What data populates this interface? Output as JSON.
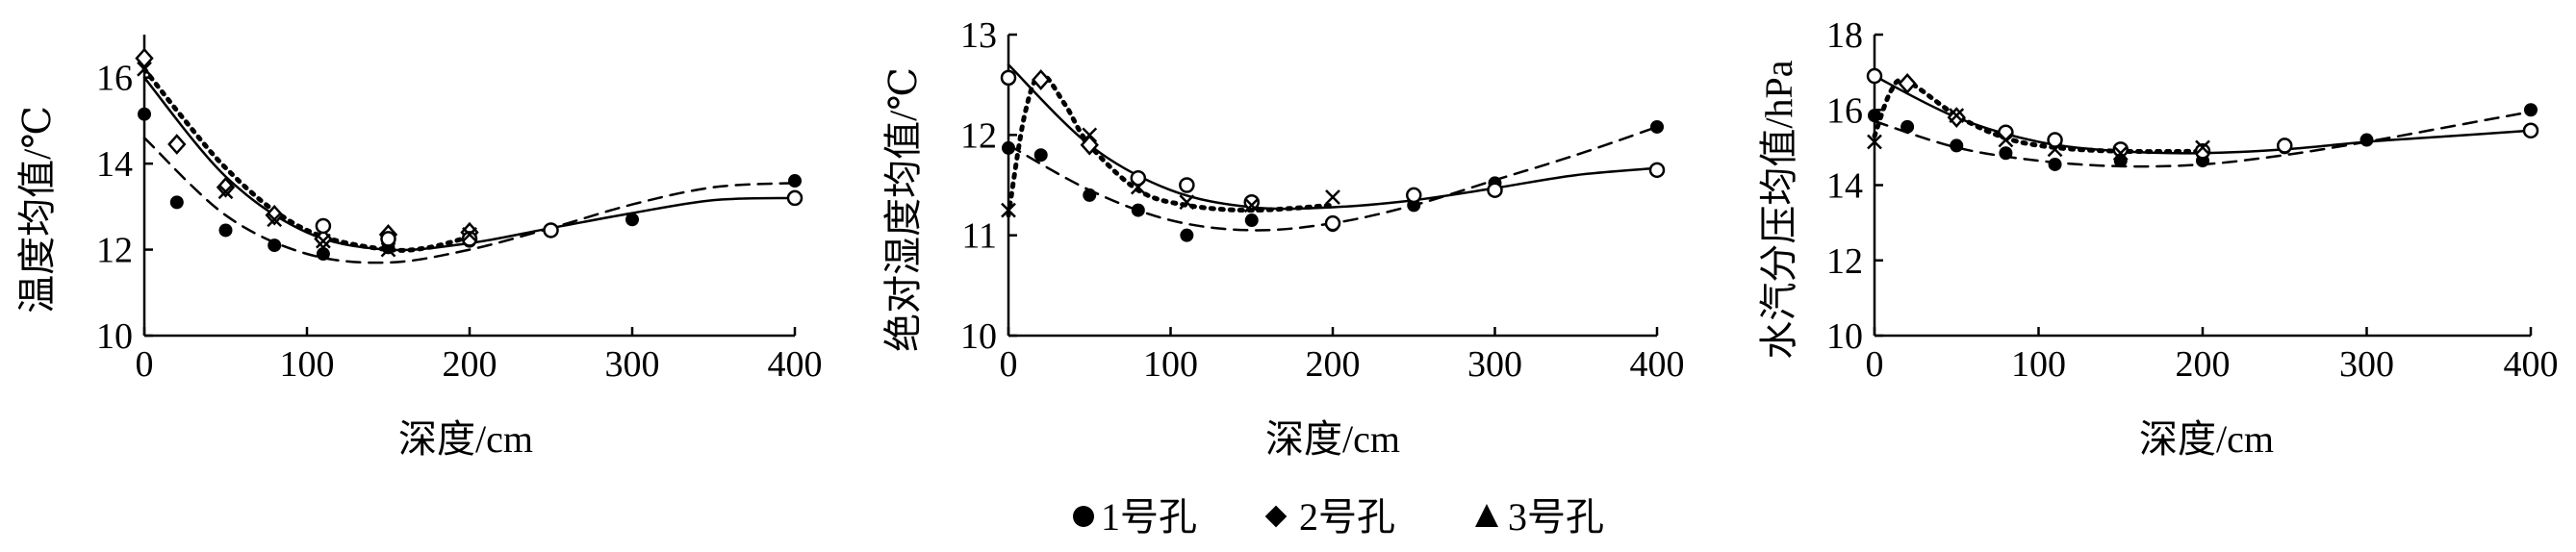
{
  "colors": {
    "axis": "#000000",
    "marker": "#000000",
    "background": "#ffffff"
  },
  "legend": {
    "placement": "bottom-center",
    "items": [
      {
        "label": "1号孔",
        "marker": "filled-circle",
        "fit_style": "dashed"
      },
      {
        "label": "2号孔",
        "marker": "filled-diamond",
        "fit_style": "dotted"
      },
      {
        "label": "3号孔",
        "marker": "filled-triangle",
        "fit_style": "solid"
      }
    ]
  },
  "chart_data": [
    {
      "type": "scatter",
      "title": "",
      "xlabel": "深度/cm",
      "ylabel": "温度均值/℃",
      "xlim": [
        0,
        400
      ],
      "ylim": [
        10,
        17
      ],
      "xticks": [
        "0",
        "100",
        "200",
        "300",
        "400"
      ],
      "yticks": [
        "10",
        "12",
        "14",
        "16"
      ],
      "series": [
        {
          "marker": "filled-circle",
          "x": [
            0,
            20,
            50,
            80,
            110,
            150,
            200,
            250,
            300,
            400
          ],
          "y": [
            15.15,
            13.1,
            12.45,
            12.1,
            11.9,
            12.05,
            12.2,
            12.45,
            12.7,
            13.6
          ],
          "fit": [
            [
              0,
              14.6
            ],
            [
              50,
              12.8
            ],
            [
              100,
              11.9
            ],
            [
              150,
              11.7
            ],
            [
              200,
              12.0
            ],
            [
              250,
              12.5
            ],
            [
              300,
              13.05
            ],
            [
              350,
              13.45
            ],
            [
              400,
              13.55
            ]
          ]
        },
        {
          "marker": "filled-diamond",
          "x": [
            0,
            20,
            50,
            80,
            110,
            150,
            200
          ],
          "y": [
            16.45,
            14.45,
            13.45,
            12.8,
            12.25,
            12.35,
            12.4
          ],
          "fit": [
            [
              0,
              16.2
            ],
            [
              25,
              15.0
            ],
            [
              50,
              13.9
            ],
            [
              80,
              12.9
            ],
            [
              110,
              12.3
            ],
            [
              150,
              12.0
            ],
            [
              175,
              12.05
            ],
            [
              200,
              12.3
            ]
          ]
        },
        {
          "marker": "open-circle",
          "x": [
            110,
            150,
            200,
            250,
            400
          ],
          "y": [
            12.55,
            12.25,
            12.25,
            12.45,
            13.2
          ],
          "fit": [
            [
              0,
              16.0
            ],
            [
              50,
              13.7
            ],
            [
              100,
              12.4
            ],
            [
              150,
              12.0
            ],
            [
              200,
              12.15
            ],
            [
              250,
              12.5
            ],
            [
              300,
              12.85
            ],
            [
              350,
              13.15
            ],
            [
              400,
              13.2
            ]
          ]
        },
        {
          "marker": "cross",
          "x": [
            0,
            50,
            80,
            110,
            150,
            200
          ],
          "y": [
            16.2,
            13.35,
            12.7,
            12.2,
            12.0,
            12.35
          ],
          "fit": []
        }
      ]
    },
    {
      "type": "scatter",
      "title": "",
      "xlabel": "深度/cm",
      "ylabel": "绝对湿度均值/℃",
      "xlim": [
        0,
        400
      ],
      "ylim": [
        10,
        13
      ],
      "xticks": [
        "0",
        "100",
        "200",
        "300",
        "400"
      ],
      "yticks": [
        "10",
        "11",
        "12",
        "13"
      ],
      "series": [
        {
          "marker": "filled-circle",
          "x": [
            0,
            20,
            50,
            80,
            110,
            150,
            200,
            250,
            300,
            400
          ],
          "y": [
            11.87,
            11.8,
            11.4,
            11.25,
            11.0,
            11.15,
            11.1,
            11.3,
            11.52,
            12.08
          ],
          "fit": [
            [
              0,
              11.9
            ],
            [
              50,
              11.45
            ],
            [
              100,
              11.15
            ],
            [
              150,
              11.05
            ],
            [
              200,
              11.12
            ],
            [
              250,
              11.3
            ],
            [
              300,
              11.55
            ],
            [
              350,
              11.8
            ],
            [
              400,
              12.08
            ]
          ]
        },
        {
          "marker": "filled-diamond",
          "x": [
            20,
            50
          ],
          "y": [
            12.55,
            11.9
          ],
          "fit": [
            [
              0,
              11.2
            ],
            [
              10,
              12.2
            ],
            [
              20,
              12.6
            ],
            [
              35,
              12.3
            ],
            [
              50,
              11.9
            ],
            [
              80,
              11.45
            ],
            [
              110,
              11.3
            ],
            [
              150,
              11.25
            ],
            [
              200,
              11.3
            ]
          ]
        },
        {
          "marker": "open-circle",
          "x": [
            0,
            80,
            110,
            150,
            200,
            250,
            300,
            400
          ],
          "y": [
            12.57,
            11.57,
            11.5,
            11.33,
            11.12,
            11.4,
            11.45,
            11.65
          ],
          "fit": [
            [
              0,
              12.7
            ],
            [
              50,
              11.9
            ],
            [
              100,
              11.45
            ],
            [
              150,
              11.28
            ],
            [
              200,
              11.28
            ],
            [
              250,
              11.35
            ],
            [
              300,
              11.47
            ],
            [
              350,
              11.6
            ],
            [
              400,
              11.67
            ]
          ]
        },
        {
          "marker": "cross",
          "x": [
            0,
            50,
            80,
            110,
            150,
            200
          ],
          "y": [
            11.25,
            12.0,
            11.48,
            11.33,
            11.3,
            11.38
          ],
          "fit": []
        }
      ]
    },
    {
      "type": "scatter",
      "title": "",
      "xlabel": "深度/cm",
      "ylabel": "水汽分压均值/hPa",
      "xlim": [
        0,
        400
      ],
      "ylim": [
        10,
        18
      ],
      "xticks": [
        "0",
        "100",
        "200",
        "300",
        "400"
      ],
      "yticks": [
        "10",
        "12",
        "14",
        "16",
        "18"
      ],
      "series": [
        {
          "marker": "filled-circle",
          "x": [
            0,
            20,
            50,
            80,
            110,
            150,
            200,
            250,
            300,
            400
          ],
          "y": [
            15.85,
            15.55,
            15.05,
            14.85,
            14.55,
            14.65,
            14.65,
            15.0,
            15.2,
            16.0
          ],
          "fit": [
            [
              0,
              15.7
            ],
            [
              50,
              15.0
            ],
            [
              100,
              14.65
            ],
            [
              150,
              14.5
            ],
            [
              200,
              14.55
            ],
            [
              250,
              14.8
            ],
            [
              300,
              15.15
            ],
            [
              350,
              15.55
            ],
            [
              400,
              15.95
            ]
          ]
        },
        {
          "marker": "filled-diamond",
          "x": [
            20,
            50
          ],
          "y": [
            16.7,
            15.8
          ],
          "fit": [
            [
              0,
              15.3
            ],
            [
              10,
              16.5
            ],
            [
              20,
              16.75
            ],
            [
              50,
              15.85
            ],
            [
              80,
              15.25
            ],
            [
              110,
              15.0
            ],
            [
              150,
              14.9
            ],
            [
              200,
              14.9
            ]
          ]
        },
        {
          "marker": "open-circle",
          "x": [
            0,
            80,
            110,
            150,
            200,
            250,
            400
          ],
          "y": [
            16.9,
            15.4,
            15.2,
            14.95,
            14.9,
            15.05,
            15.45
          ],
          "fit": [
            [
              0,
              16.9
            ],
            [
              50,
              15.8
            ],
            [
              100,
              15.15
            ],
            [
              150,
              14.9
            ],
            [
              200,
              14.85
            ],
            [
              250,
              14.95
            ],
            [
              300,
              15.15
            ],
            [
              350,
              15.3
            ],
            [
              400,
              15.45
            ]
          ]
        },
        {
          "marker": "cross",
          "x": [
            0,
            50,
            80,
            110,
            150,
            200
          ],
          "y": [
            15.15,
            15.85,
            15.2,
            14.95,
            14.85,
            15.0
          ],
          "fit": []
        }
      ]
    }
  ]
}
